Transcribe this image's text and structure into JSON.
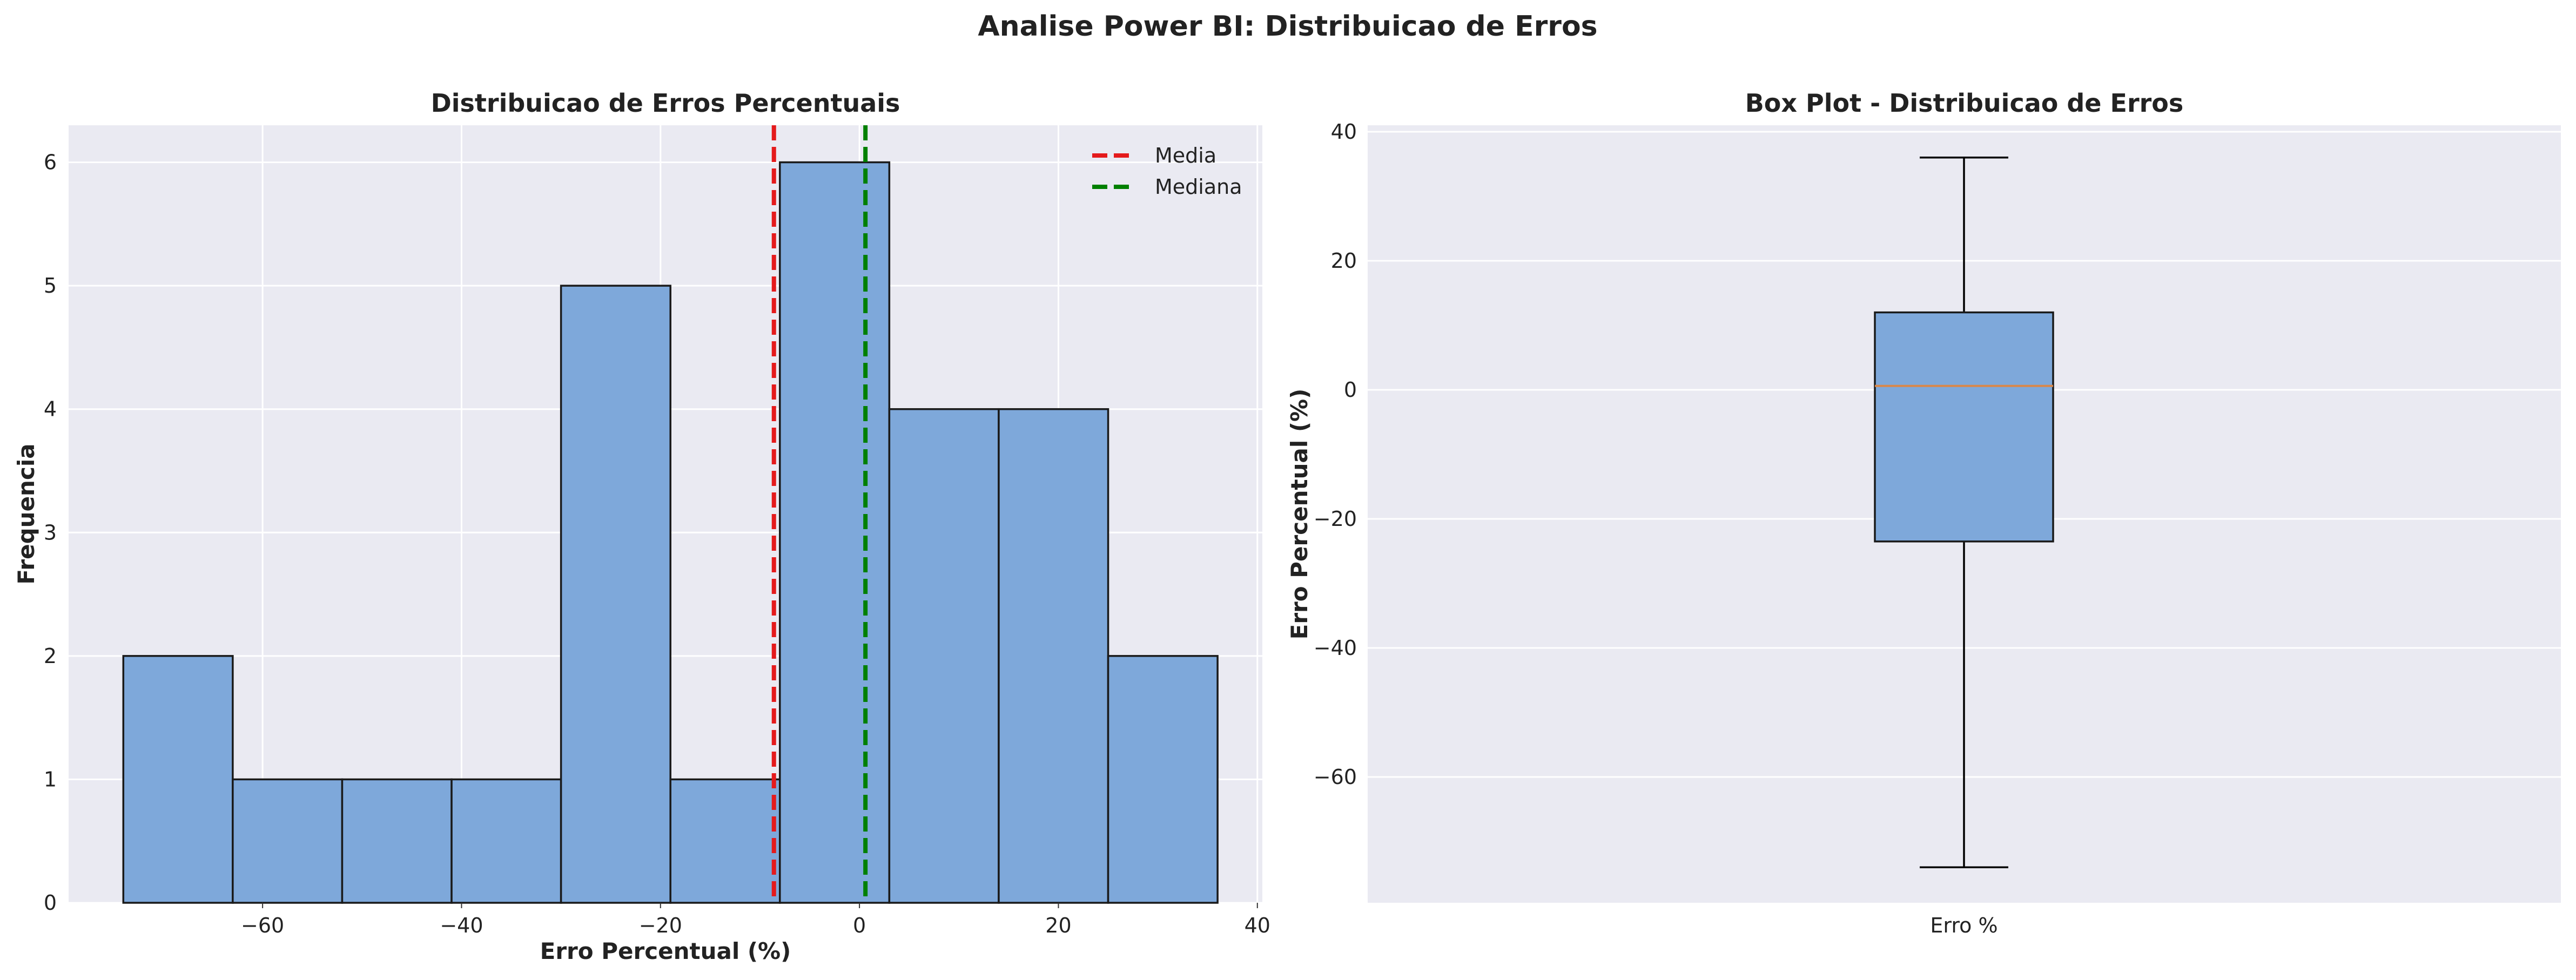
{
  "figure": {
    "title": "Analise Power BI: Distribuicao de Erros"
  },
  "chart_data": [
    {
      "type": "bar",
      "subtype": "histogram",
      "title": "Distribuicao de Erros Percentuais",
      "xlabel": "Erro Percentual (%)",
      "ylabel": "Frequencia",
      "xlim": [
        -79.5,
        40.5
      ],
      "ylim": [
        0,
        6.3
      ],
      "xticks": [
        -60,
        -40,
        -20,
        0,
        20,
        40
      ],
      "yticks": [
        0,
        1,
        2,
        3,
        4,
        5,
        6
      ],
      "bin_edges": [
        -74,
        -63,
        -52,
        -41,
        -30,
        -19,
        -8,
        3,
        14,
        25,
        36
      ],
      "values": [
        2,
        1,
        1,
        1,
        5,
        1,
        6,
        4,
        4,
        2
      ],
      "reference_lines": [
        {
          "name": "Media",
          "x": -8.6,
          "color": "#e41a1c",
          "style": "dashed"
        },
        {
          "name": "Mediana",
          "x": 0.6,
          "color": "#008000",
          "style": "dashed"
        }
      ],
      "legend": {
        "position": "top-right",
        "entries": [
          "Media",
          "Mediana"
        ]
      },
      "bar_color": "#7ea8da",
      "grid": true
    },
    {
      "type": "box",
      "title": "Box Plot - Distribuicao de Erros",
      "xlabel": "",
      "ylabel": "Erro Percentual (%)",
      "categories": [
        "Erro %"
      ],
      "ylim": [
        -79.5,
        41
      ],
      "yticks": [
        -60,
        -40,
        -20,
        0,
        20,
        40
      ],
      "box": {
        "min": -74,
        "q1": -23.5,
        "median": 0.6,
        "q3": 12,
        "max": 36
      },
      "box_color": "#7ea8da",
      "median_color": "#d9874a",
      "grid": true
    }
  ]
}
